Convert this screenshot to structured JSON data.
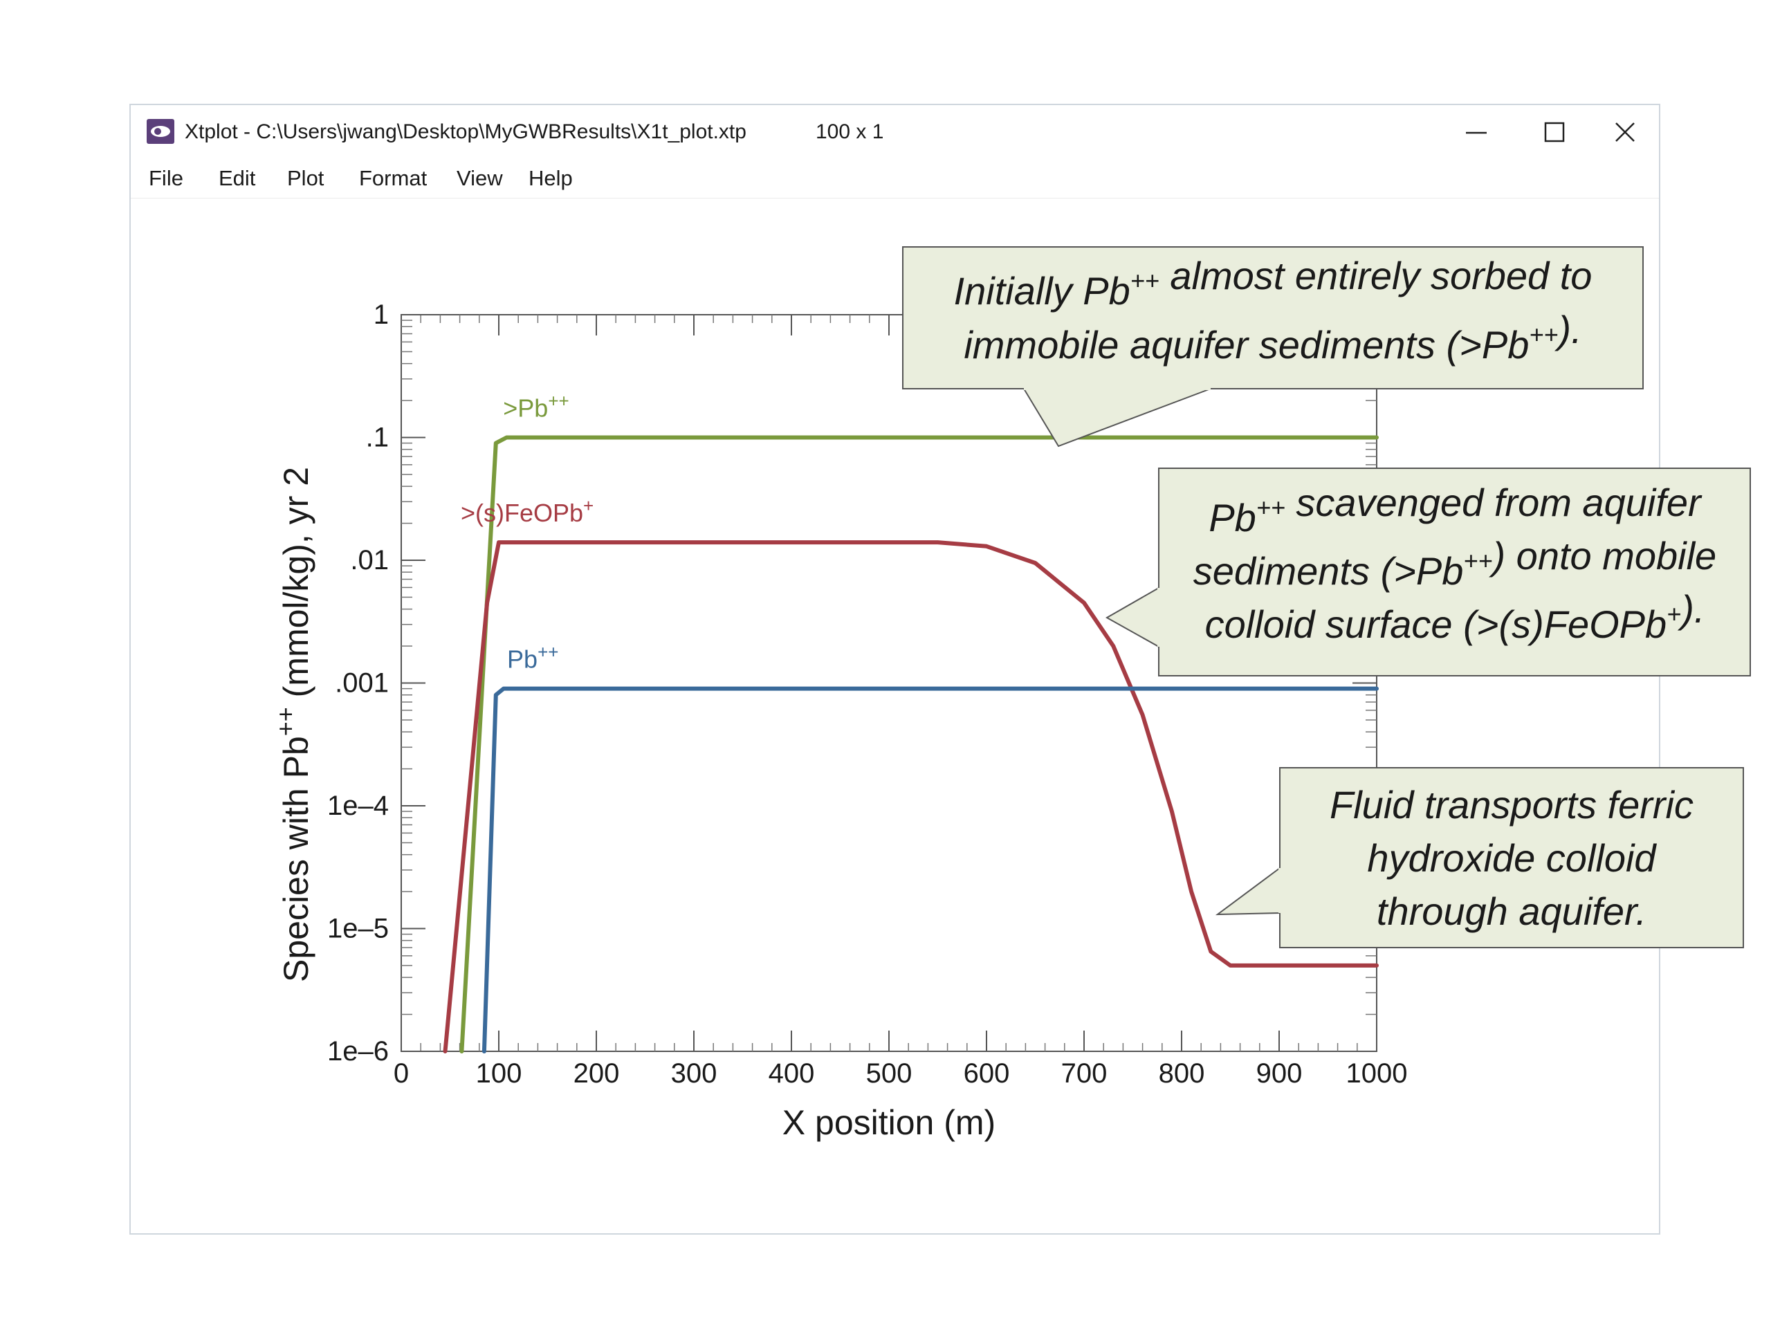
{
  "window": {
    "title": "Xtplot - C:\\Users\\jwang\\Desktop\\MyGWBResults\\X1t_plot.xtp",
    "dims": "100 x 1"
  },
  "menu": [
    "File",
    "Edit",
    "Plot",
    "Format",
    "View",
    "Help"
  ],
  "colors": {
    "green": "#7a9a3c",
    "red": "#a63c44",
    "blue": "#3a6a9a",
    "callout_bg": "#eaeedd"
  },
  "chart_data": {
    "type": "line",
    "xlabel": "X position (m)",
    "ylabel_main": "Species with Pb",
    "ylabel_sup": "++",
    "ylabel_tail": " (mmol/kg), yr 2",
    "xlim": [
      0,
      1000
    ],
    "ylim": [
      1e-06,
      1
    ],
    "yscale": "log",
    "xticks": [
      "0",
      "100",
      "200",
      "300",
      "400",
      "500",
      "600",
      "700",
      "800",
      "900",
      "1000"
    ],
    "yticks": [
      "1e–6",
      "1e–5",
      "1e–4",
      ".001",
      ".01",
      ".1",
      "1"
    ],
    "series": [
      {
        "name": ">Pb",
        "sup": "++",
        "color": "#7a9a3c",
        "points": [
          [
            62,
            1e-06
          ],
          [
            97,
            0.09
          ],
          [
            108,
            0.1
          ],
          [
            1000,
            0.1
          ]
        ]
      },
      {
        "name": ">(s)FeOPb",
        "sup": "+",
        "color": "#a63c44",
        "points": [
          [
            45,
            1e-06
          ],
          [
            88,
            0.0045
          ],
          [
            100,
            0.014
          ],
          [
            550,
            0.014
          ],
          [
            600,
            0.013
          ],
          [
            650,
            0.0095
          ],
          [
            700,
            0.0045
          ],
          [
            730,
            0.002
          ],
          [
            760,
            0.00055
          ],
          [
            790,
            9e-05
          ],
          [
            810,
            2e-05
          ],
          [
            830,
            6.5e-06
          ],
          [
            850,
            5e-06
          ],
          [
            1000,
            5e-06
          ]
        ]
      },
      {
        "name": "Pb",
        "sup": "++",
        "color": "#3a6a9a",
        "points": [
          [
            85,
            1e-06
          ],
          [
            97,
            0.0008
          ],
          [
            105,
            0.0009
          ],
          [
            1000,
            0.0009
          ]
        ]
      }
    ]
  },
  "callouts": [
    {
      "lines": [
        [
          {
            "t": "Initially Pb"
          },
          {
            "t": "++",
            "sup": true
          },
          {
            "t": " almost entirely sorbed to"
          }
        ],
        [
          {
            "t": "immobile aquifer sediments (>Pb"
          },
          {
            "t": "++",
            "sup": true
          },
          {
            "t": ")."
          }
        ]
      ]
    },
    {
      "lines": [
        [
          {
            "t": "Pb"
          },
          {
            "t": "++",
            "sup": true
          },
          {
            "t": " scavenged from aquifer"
          }
        ],
        [
          {
            "t": "sediments (>Pb"
          },
          {
            "t": "++",
            "sup": true
          },
          {
            "t": ") onto mobile"
          }
        ],
        [
          {
            "t": "colloid surface (>(s)FeOPb"
          },
          {
            "t": "+",
            "sup": true
          },
          {
            "t": ")."
          }
        ]
      ]
    },
    {
      "lines": [
        [
          {
            "t": "Fluid transports ferric"
          }
        ],
        [
          {
            "t": "hydroxide colloid"
          }
        ],
        [
          {
            "t": "through aquifer."
          }
        ]
      ]
    }
  ]
}
